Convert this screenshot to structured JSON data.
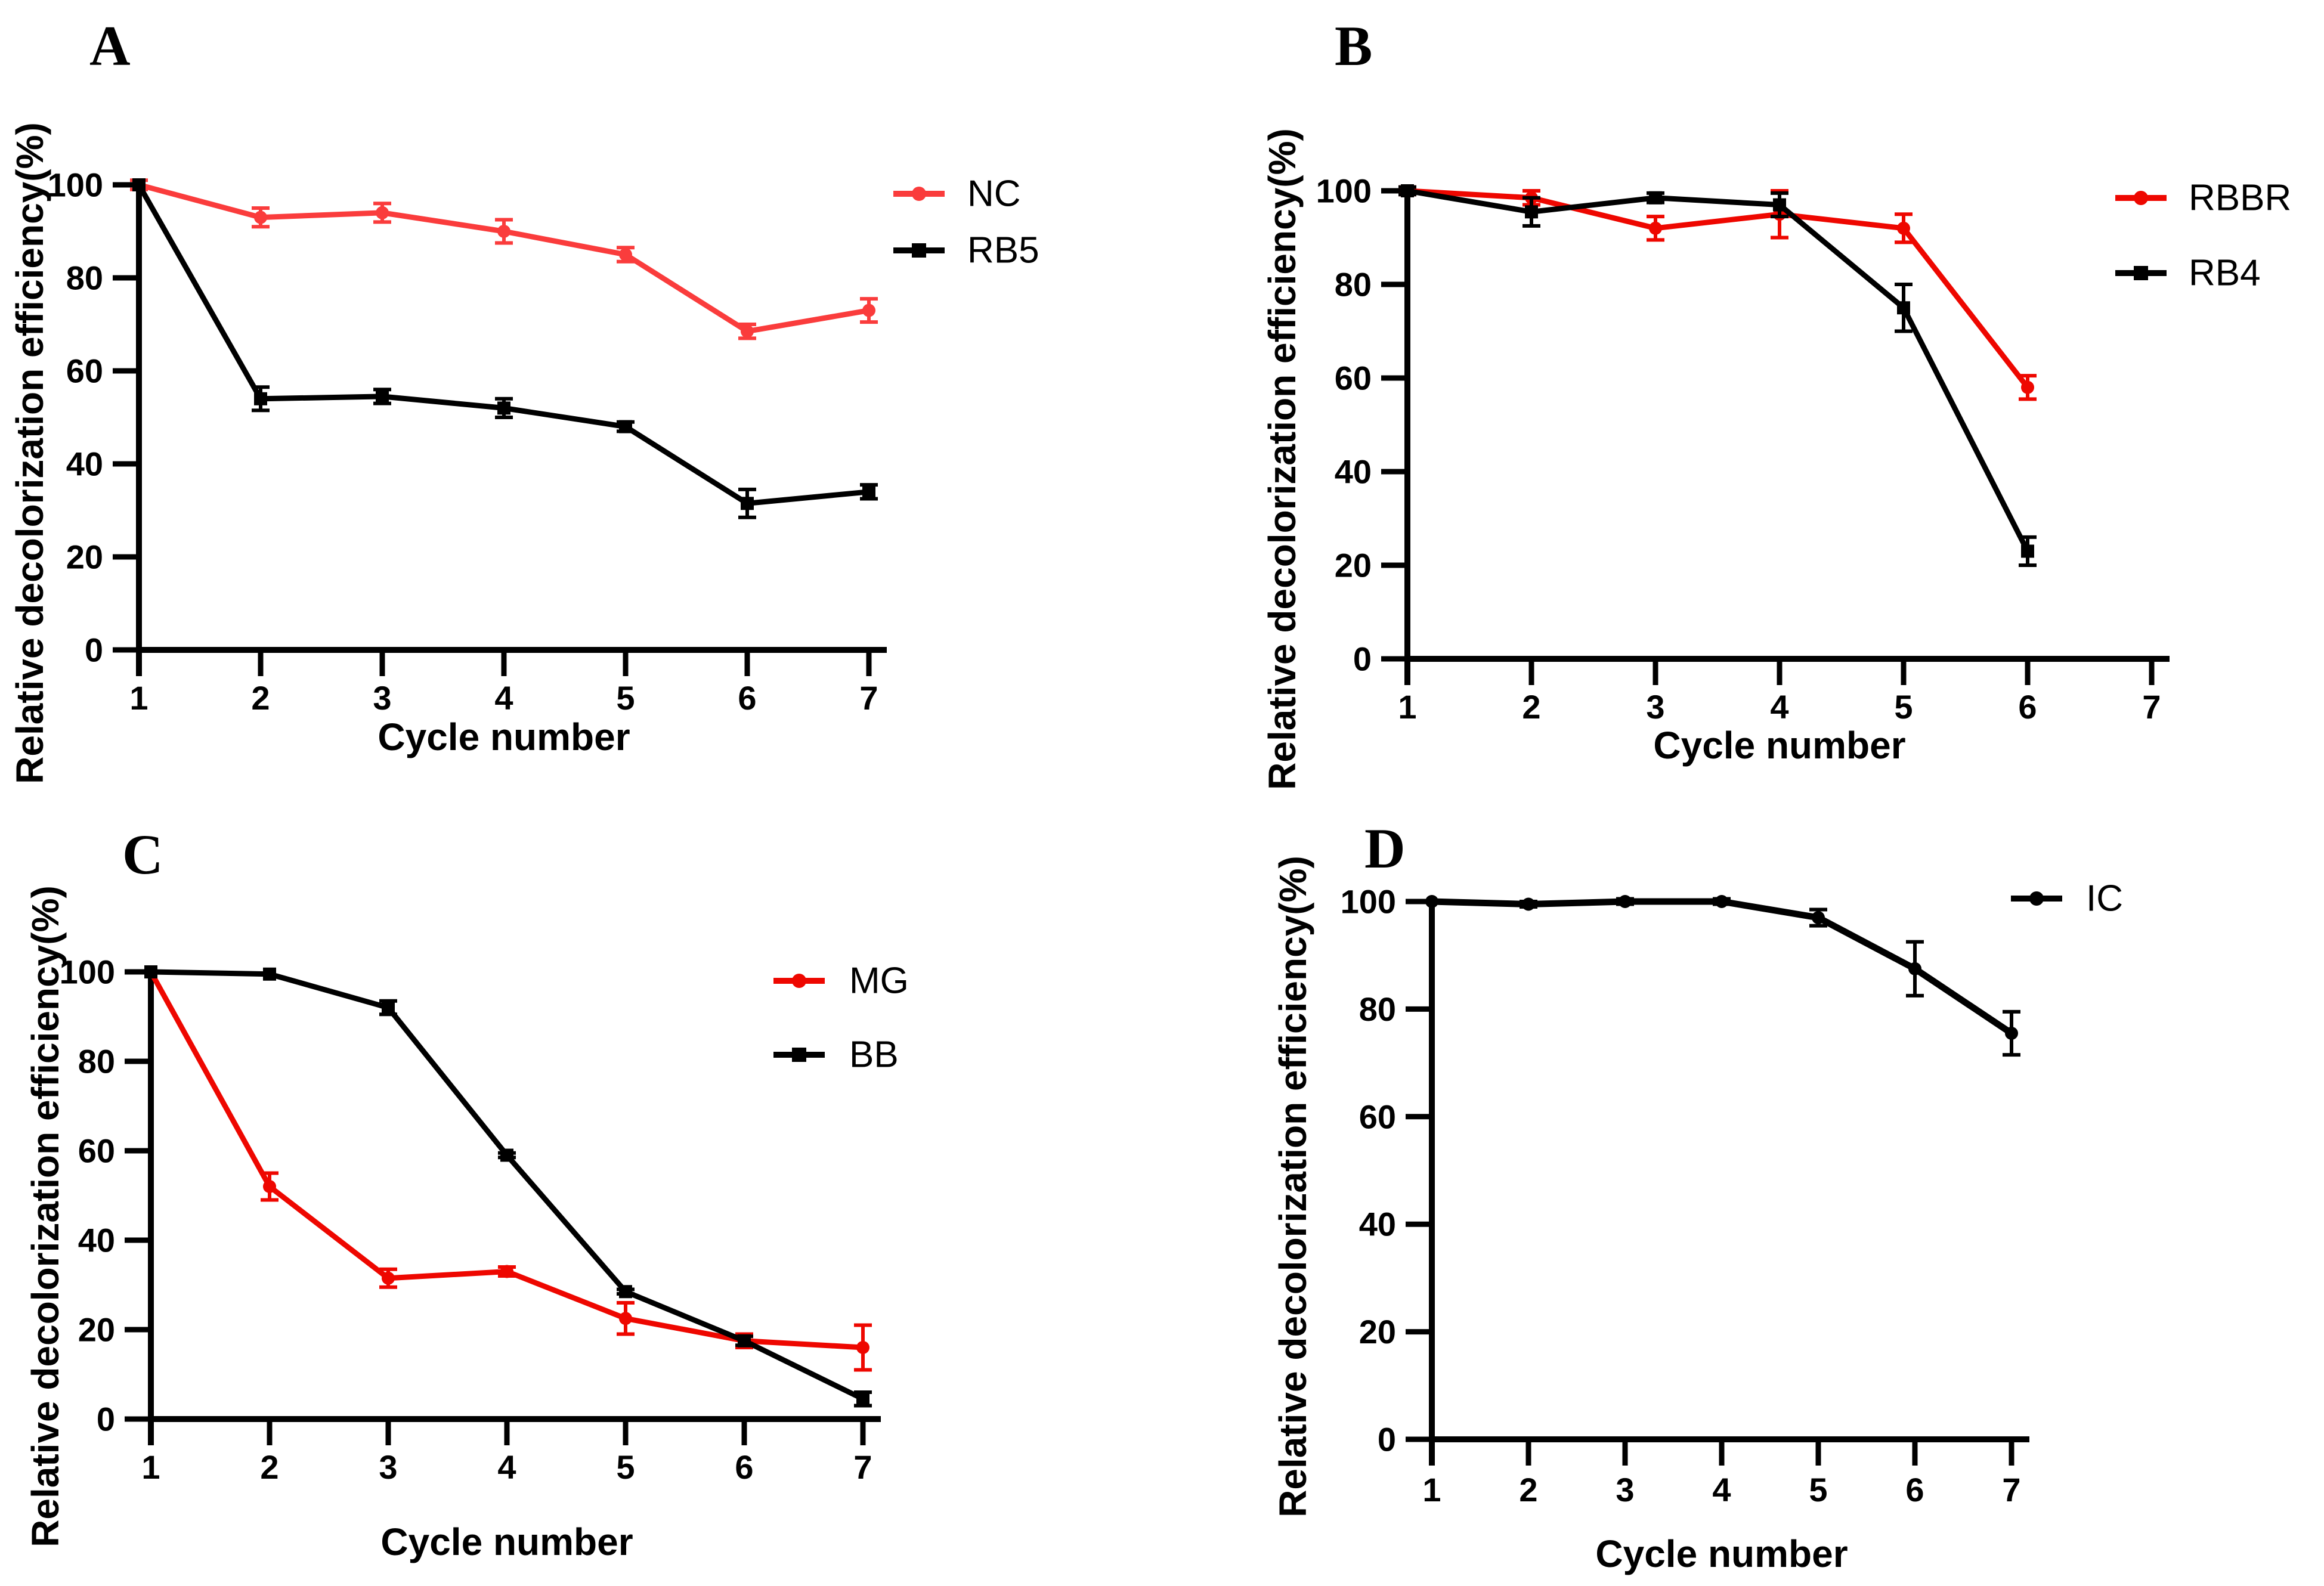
{
  "figure": {
    "background": "#FFFFFF",
    "axis_color": "#000000",
    "accent_red_light": "#FA3C3C",
    "accent_red": "#EE0700",
    "panel_letters": [
      "A",
      "B",
      "C",
      "D"
    ]
  },
  "chart_data": [
    {
      "type": "line",
      "panel_label": "A",
      "title": "",
      "xlabel": "Cycle number",
      "ylabel": "Relative decolorization efficiency(%)",
      "x": [
        1,
        2,
        3,
        4,
        5,
        6,
        7
      ],
      "xticks": [
        1,
        2,
        3,
        4,
        5,
        6,
        7
      ],
      "yticks": [
        0,
        20,
        40,
        60,
        80,
        100
      ],
      "xlim": [
        1,
        7
      ],
      "ylim": [
        0,
        100
      ],
      "grid": false,
      "legend_position": "right-top",
      "series": [
        {
          "name": "NC",
          "color": "#FA3C3C",
          "marker": "circle",
          "values": [
            100,
            93,
            94,
            90,
            85,
            68.5,
            73
          ],
          "errors": [
            1,
            2,
            2,
            2.5,
            1.5,
            1.5,
            2.5
          ]
        },
        {
          "name": "RB5",
          "color": "#000000",
          "marker": "square",
          "values": [
            100,
            54,
            54.5,
            52,
            48,
            31.5,
            34
          ],
          "errors": [
            0,
            2.5,
            1.5,
            2,
            1,
            3,
            1.5
          ]
        }
      ]
    },
    {
      "type": "line",
      "panel_label": "B",
      "title": "",
      "xlabel": "Cycle number",
      "ylabel": "Relative decolorization efficiency(%)",
      "x": [
        1,
        2,
        3,
        4,
        5,
        6
      ],
      "xticks": [
        1,
        2,
        3,
        4,
        5,
        6,
        7
      ],
      "yticks": [
        0,
        20,
        40,
        60,
        80,
        100
      ],
      "xlim": [
        1,
        7
      ],
      "ylim": [
        0,
        100
      ],
      "grid": false,
      "legend_position": "right-top",
      "series": [
        {
          "name": "RBBR",
          "color": "#EE0700",
          "marker": "circle",
          "values": [
            100,
            98.5,
            92,
            95,
            92,
            58
          ],
          "errors": [
            0.8,
            1.5,
            2.5,
            5,
            3,
            2.5
          ]
        },
        {
          "name": "RB4",
          "color": "#000000",
          "marker": "square",
          "values": [
            100,
            95.5,
            98.5,
            97,
            75,
            23
          ],
          "errors": [
            0.8,
            3,
            1,
            2.5,
            5,
            3
          ]
        }
      ]
    },
    {
      "type": "line",
      "panel_label": "C",
      "title": "",
      "xlabel": "Cycle number",
      "ylabel": "Relative decolorization efficiency(%)",
      "x": [
        1,
        2,
        3,
        4,
        5,
        6,
        7
      ],
      "xticks": [
        1,
        2,
        3,
        4,
        5,
        6,
        7
      ],
      "yticks": [
        0,
        20,
        40,
        60,
        80,
        100
      ],
      "xlim": [
        1,
        7
      ],
      "ylim": [
        0,
        100
      ],
      "grid": false,
      "legend_position": "right-top",
      "series": [
        {
          "name": "MG",
          "color": "#EE0700",
          "marker": "circle",
          "values": [
            100,
            52,
            31.5,
            33,
            22.5,
            17.5,
            16
          ],
          "errors": [
            0,
            3,
            2,
            1,
            3.5,
            1.5,
            5
          ]
        },
        {
          "name": "BB",
          "color": "#000000",
          "marker": "square",
          "values": [
            100,
            99.5,
            92,
            59,
            28.5,
            17.5,
            4.5
          ],
          "errors": [
            0,
            0,
            1.5,
            0.5,
            0.5,
            1,
            1.5
          ]
        }
      ]
    },
    {
      "type": "line",
      "panel_label": "D",
      "title": "",
      "xlabel": "Cycle number",
      "ylabel": "Relative decolorization efficiency(%)",
      "x": [
        1,
        2,
        3,
        4,
        5,
        6,
        7
      ],
      "xticks": [
        1,
        2,
        3,
        4,
        5,
        6,
        7
      ],
      "yticks": [
        0,
        20,
        40,
        60,
        80,
        100
      ],
      "xlim": [
        1,
        7
      ],
      "ylim": [
        0,
        100
      ],
      "grid": false,
      "legend_position": "right-top",
      "series": [
        {
          "name": "IC",
          "color": "#000000",
          "marker": "circle",
          "values": [
            100,
            99.5,
            100,
            100,
            97,
            87.5,
            75.5
          ],
          "errors": [
            0,
            0.5,
            0.5,
            0.5,
            1.5,
            5,
            4
          ]
        }
      ]
    }
  ]
}
